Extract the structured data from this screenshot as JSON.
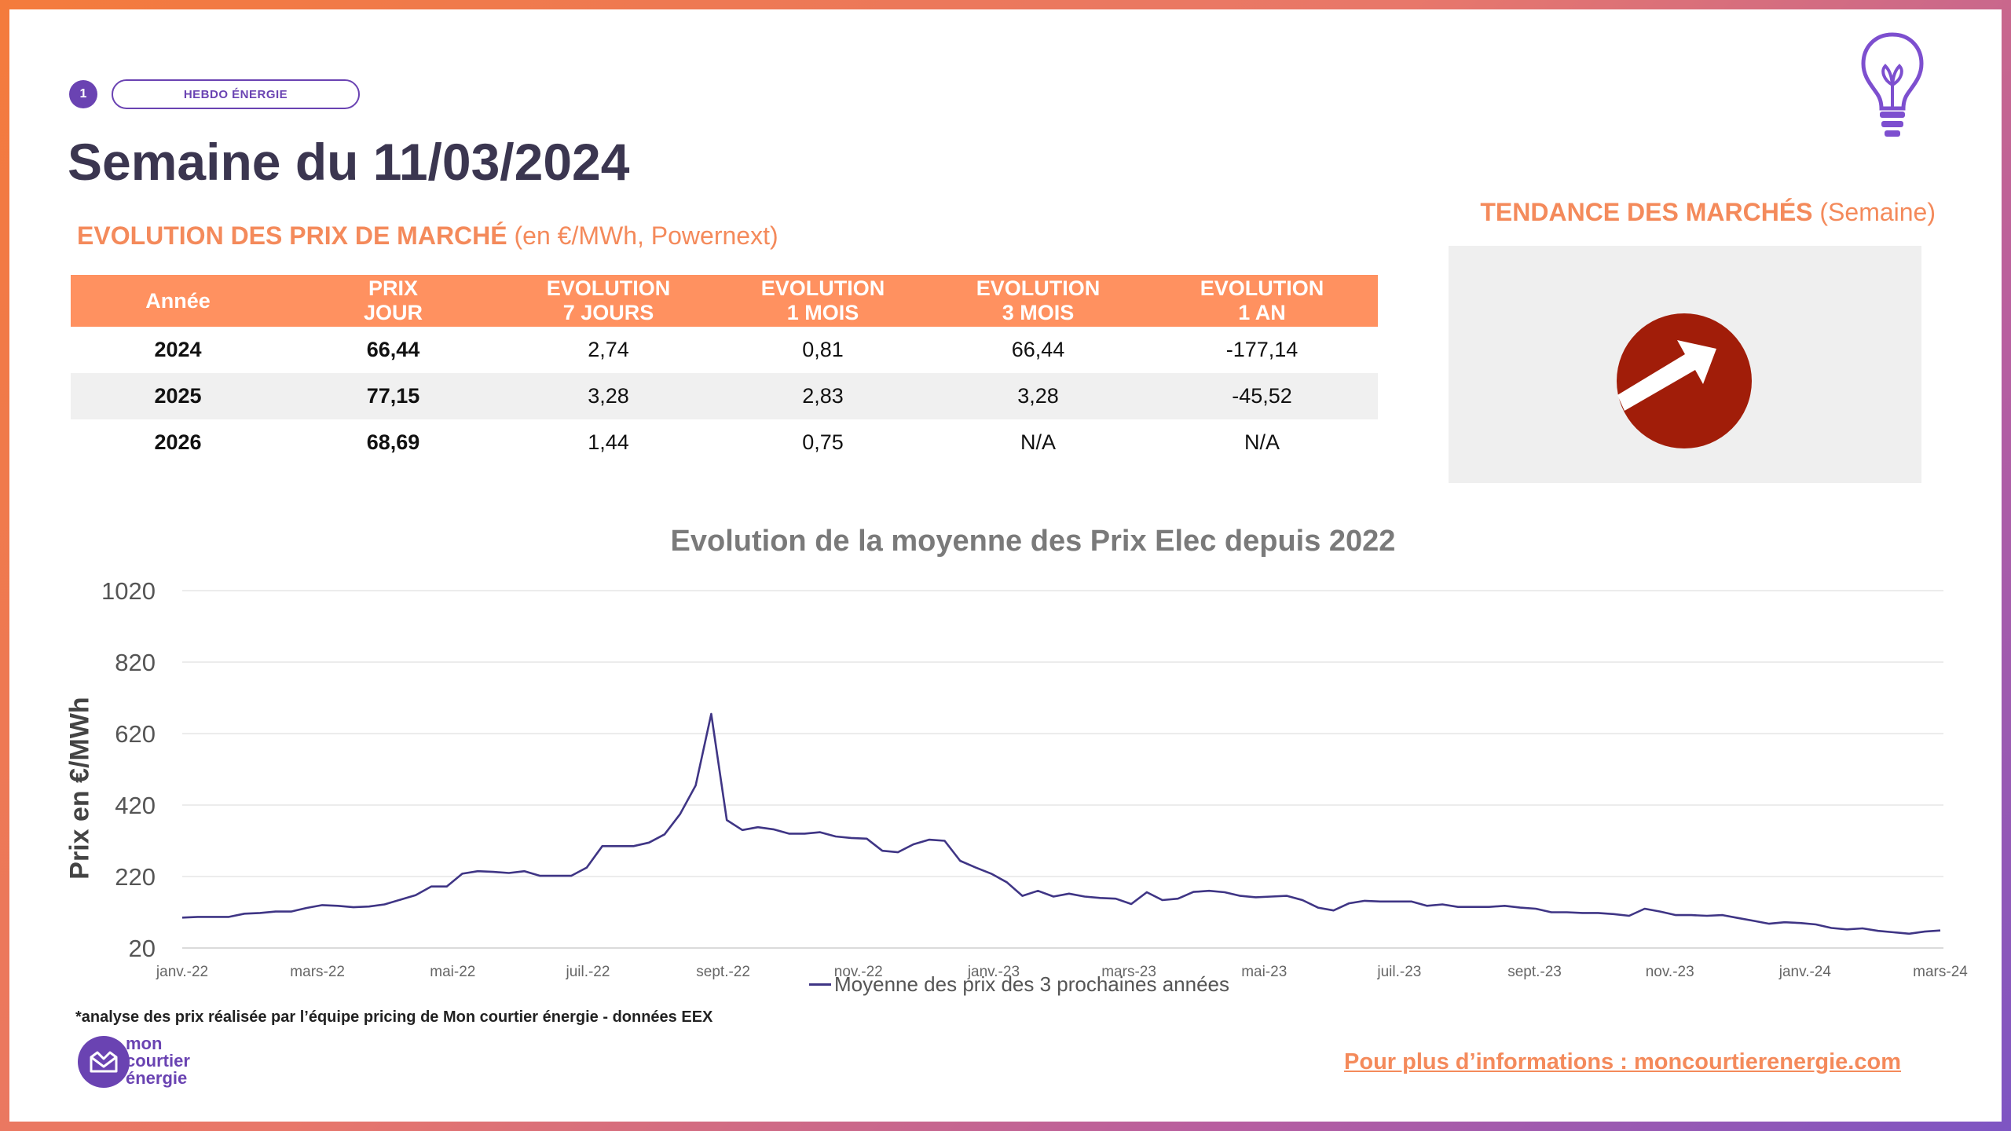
{
  "header": {
    "page_number": "1",
    "tag": "HEBDO ÉNERGIE",
    "title": "Semaine du 11/03/2024",
    "subtitle_bold": "EVOLUTION DES PRIX DE MARCHÉ",
    "subtitle_rest": " (en €/MWh, Powernext)"
  },
  "trend": {
    "title_bold": "TENDANCE DES MARCHÉS",
    "title_rest": " (Semaine)",
    "direction": "up",
    "arrow_color": "#a11d09",
    "icon": "up-right-arrow-icon"
  },
  "table": {
    "headers": [
      {
        "l1": "Année",
        "l2": ""
      },
      {
        "l1": "PRIX",
        "l2": "JOUR"
      },
      {
        "l1": "EVOLUTION",
        "l2": "7 JOURS"
      },
      {
        "l1": "EVOLUTION",
        "l2": "1 MOIS"
      },
      {
        "l1": "EVOLUTION",
        "l2": "3 MOIS"
      },
      {
        "l1": "EVOLUTION",
        "l2": "1 AN"
      }
    ],
    "rows": [
      {
        "year": "2024",
        "price": "66,44",
        "e7": "2,74",
        "e1m": "0,81",
        "e3m": "66,44",
        "e1y": "-177,14"
      },
      {
        "year": "2025",
        "price": "77,15",
        "e7": "3,28",
        "e1m": "2,83",
        "e3m": "3,28",
        "e1y": "-45,52"
      },
      {
        "year": "2026",
        "price": "68,69",
        "e7": "1,44",
        "e1m": "0,75",
        "e3m": "N/A",
        "e1y": "N/A"
      }
    ]
  },
  "chart_data": {
    "type": "line",
    "title": "Evolution de la moyenne des Prix Elec depuis 2022",
    "ylabel": "Prix en €/MWh",
    "xlabel": "",
    "ylim": [
      20,
      1020
    ],
    "yticks": [
      20,
      220,
      420,
      620,
      820,
      1020
    ],
    "xticks": [
      "janv.-22",
      "mars-22",
      "mai-22",
      "juil.-22",
      "sept.-22",
      "nov.-22",
      "janv.-23",
      "mars-23",
      "mai-23",
      "juil.-23",
      "sept.-23",
      "nov.-23",
      "janv.-24",
      "mars-24"
    ],
    "grid": "horizontal",
    "legend_position": "bottom",
    "series": [
      {
        "name": "Moyenne des prix des 3 prochaines années",
        "color": "#3f3585",
        "values": [
          105,
          107,
          107,
          107,
          116,
          118,
          122,
          122,
          132,
          140,
          138,
          134,
          136,
          142,
          155,
          168,
          192,
          192,
          228,
          235,
          233,
          230,
          235,
          222,
          222,
          222,
          245,
          305,
          305,
          305,
          315,
          338,
          395,
          475,
          675,
          378,
          350,
          358,
          352,
          340,
          340,
          344,
          332,
          328,
          326,
          292,
          288,
          310,
          323,
          320,
          264,
          245,
          228,
          204,
          166,
          180,
          164,
          172,
          164,
          160,
          158,
          143,
          176,
          154,
          158,
          177,
          180,
          176,
          166,
          162,
          164,
          166,
          154,
          133,
          125,
          145,
          152,
          150,
          150,
          150,
          138,
          142,
          135,
          135,
          135,
          138,
          133,
          130,
          120,
          120,
          118,
          118,
          115,
          110,
          130,
          122,
          112,
          112,
          110,
          112,
          104,
          96,
          88,
          92,
          90,
          86,
          76,
          72,
          75,
          68,
          64,
          60,
          66,
          69
        ]
      }
    ]
  },
  "footer": {
    "note": "*analyse des prix réalisée par l’équipe pricing de Mon courtier énergie -  données EEX",
    "logo_line1": "mon",
    "logo_line2": "courtier",
    "logo_line3": "énergie",
    "link_text": "Pour plus d’informations : moncourtierenergie.com"
  },
  "colors": {
    "accent_orange": "#ff9160",
    "purple": "#6a43b2",
    "dark_title": "#3b3650"
  }
}
